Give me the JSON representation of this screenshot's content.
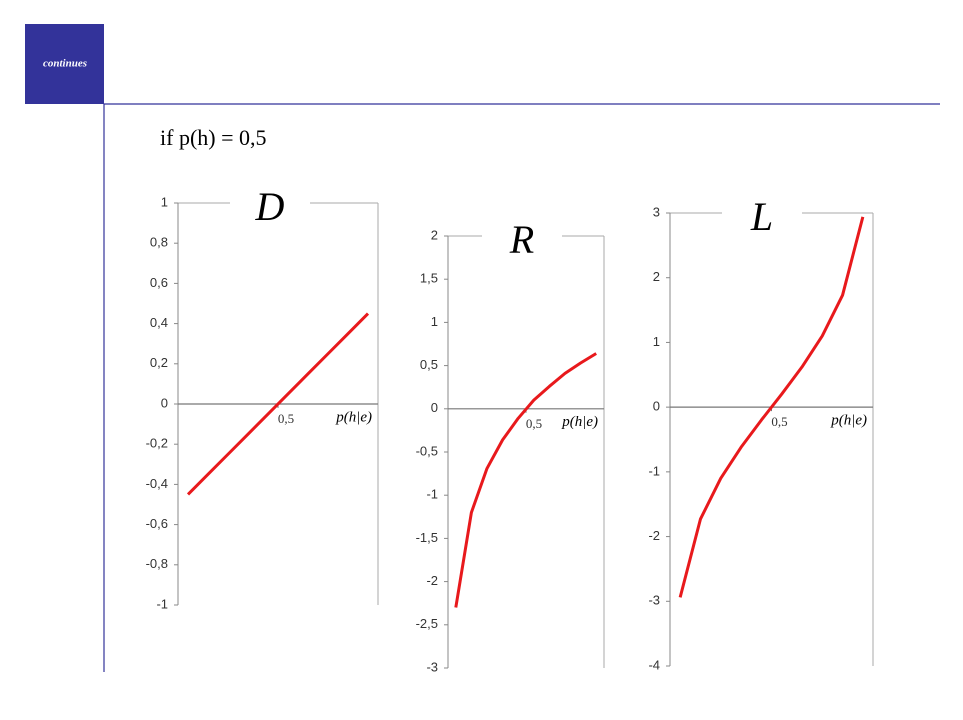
{
  "header": {
    "label": "continues",
    "heading": "if p(h) = 0,5"
  },
  "chart_data": [
    {
      "type": "line",
      "title": "D",
      "xlabel": "p(h|e)",
      "color": "#e8191c",
      "x": [
        0.05,
        0.15,
        0.25,
        0.35,
        0.45,
        0.55,
        0.65,
        0.75,
        0.85,
        0.95
      ],
      "values": [
        -0.45,
        -0.35,
        -0.25,
        -0.15,
        -0.05,
        0.05,
        0.15,
        0.25,
        0.35,
        0.45
      ],
      "xlim": [
        0,
        1
      ],
      "xticks": [
        {
          "value": 0.5,
          "label": "0,5"
        }
      ],
      "ylim": [
        -1,
        1
      ],
      "yticks": [
        1,
        {
          "value": 0.8,
          "label": "0,8"
        },
        {
          "value": 0.6,
          "label": "0,6"
        },
        {
          "value": 0.4,
          "label": "0,4"
        },
        {
          "value": 0.2,
          "label": "0,2"
        },
        0,
        {
          "value": -0.2,
          "label": "-0,2"
        },
        {
          "value": -0.4,
          "label": "-0,4"
        },
        {
          "value": -0.6,
          "label": "-0,6"
        },
        {
          "value": -0.8,
          "label": "-0,8"
        },
        -1
      ]
    },
    {
      "type": "line",
      "title": "R",
      "xlabel": "p(h|e)",
      "color": "#e8191c",
      "x": [
        0.05,
        0.15,
        0.25,
        0.35,
        0.45,
        0.55,
        0.65,
        0.75,
        0.85,
        0.95
      ],
      "values": [
        -2.3,
        -1.2,
        -0.69,
        -0.36,
        -0.11,
        0.1,
        0.26,
        0.41,
        0.53,
        0.64
      ],
      "xlim": [
        0,
        1
      ],
      "xticks": [
        {
          "value": 0.5,
          "label": "0,5"
        }
      ],
      "ylim": [
        -3,
        2
      ],
      "yticks": [
        2,
        {
          "value": 1.5,
          "label": "1,5"
        },
        1,
        {
          "value": 0.5,
          "label": "0,5"
        },
        0,
        {
          "value": -0.5,
          "label": "-0,5"
        },
        -1,
        {
          "value": -1.5,
          "label": "-1,5"
        },
        -2,
        {
          "value": -2.5,
          "label": "-2,5"
        },
        -3
      ]
    },
    {
      "type": "line",
      "title": "L",
      "xlabel": "p(h|e)",
      "color": "#e8191c",
      "x": [
        0.05,
        0.15,
        0.25,
        0.35,
        0.45,
        0.55,
        0.65,
        0.75,
        0.85,
        0.95
      ],
      "values": [
        -2.94,
        -1.73,
        -1.1,
        -0.62,
        -0.2,
        0.2,
        0.62,
        1.1,
        1.73,
        2.94
      ],
      "xlim": [
        0,
        1
      ],
      "xticks": [
        {
          "value": 0.5,
          "label": "0,5"
        }
      ],
      "ylim": [
        -4,
        3
      ],
      "yticks": [
        3,
        2,
        1,
        0,
        -1,
        -2,
        -3,
        -4
      ]
    }
  ]
}
